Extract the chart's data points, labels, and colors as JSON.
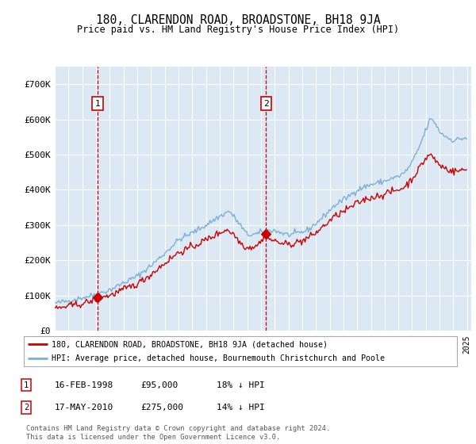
{
  "title": "180, CLARENDON ROAD, BROADSTONE, BH18 9JA",
  "subtitle": "Price paid vs. HM Land Registry's House Price Index (HPI)",
  "hpi_color": "#7ab0d4",
  "price_color": "#cc0000",
  "vline_color": "#cc0000",
  "background_color": "#dce9f5",
  "ylim": [
    0,
    750000
  ],
  "yticks": [
    0,
    100000,
    200000,
    300000,
    400000,
    500000,
    600000,
    700000
  ],
  "ytick_labels": [
    "£0",
    "£100K",
    "£200K",
    "£300K",
    "£400K",
    "£500K",
    "£600K",
    "£700K"
  ],
  "legend_label_price": "180, CLARENDON ROAD, BROADSTONE, BH18 9JA (detached house)",
  "legend_label_hpi": "HPI: Average price, detached house, Bournemouth Christchurch and Poole",
  "table_entries": [
    {
      "num": "1",
      "date": "16-FEB-1998",
      "price": "£95,000",
      "hpi": "18% ↓ HPI"
    },
    {
      "num": "2",
      "date": "17-MAY-2010",
      "price": "£275,000",
      "hpi": "14% ↓ HPI"
    }
  ],
  "footnote": "Contains HM Land Registry data © Crown copyright and database right 2024.\nThis data is licensed under the Open Government Licence v3.0.",
  "sale1_year": 1998.12,
  "sale1_price": 95000,
  "sale2_year": 2010.38,
  "sale2_price": 275000,
  "xlim_left": 1995.0,
  "xlim_right": 2025.3
}
